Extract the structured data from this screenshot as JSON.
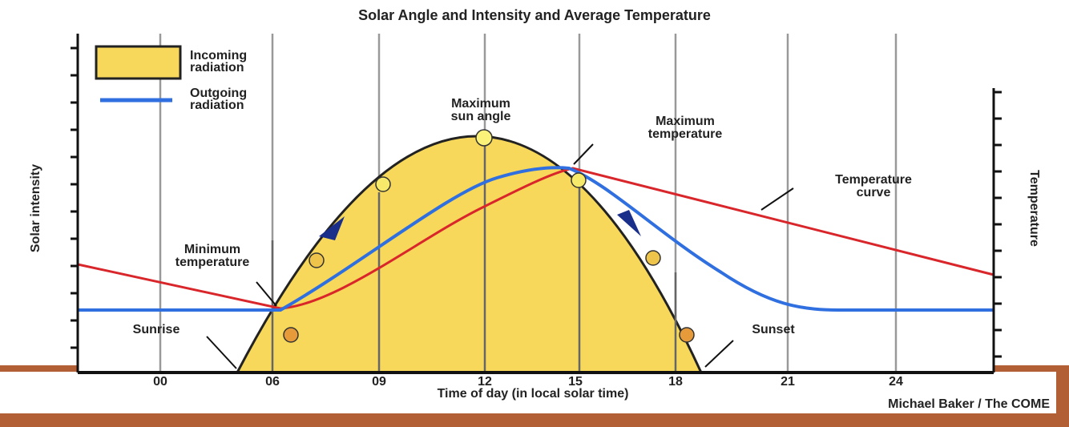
{
  "title": "Solar Angle and Intensity and Average Temperature",
  "legend": [
    {
      "lines": [
        "Incoming",
        "radiation"
      ]
    },
    {
      "lines": [
        "Outgoing",
        "radiation"
      ]
    }
  ],
  "annotations": [
    {
      "lines": [
        "Maximum",
        "sun angle"
      ]
    },
    {
      "lines": [
        "Maximum",
        "temperature"
      ]
    },
    {
      "lines": [
        "Temperature",
        "curve"
      ]
    },
    {
      "lines": [
        "Minimum",
        "temperature"
      ]
    },
    {
      "lines": [
        "Sunrise"
      ]
    },
    {
      "lines": [
        "Sunset"
      ]
    }
  ],
  "x_axis": {
    "label": "Time of day (in local solar time)",
    "ticks": [
      "00",
      "06",
      "09",
      "12",
      "15",
      "18",
      "21",
      "24"
    ]
  },
  "y_axis_left": "Solar intensity",
  "y_axis_right": "Temperature",
  "credit": "Michael Baker / The COME"
}
